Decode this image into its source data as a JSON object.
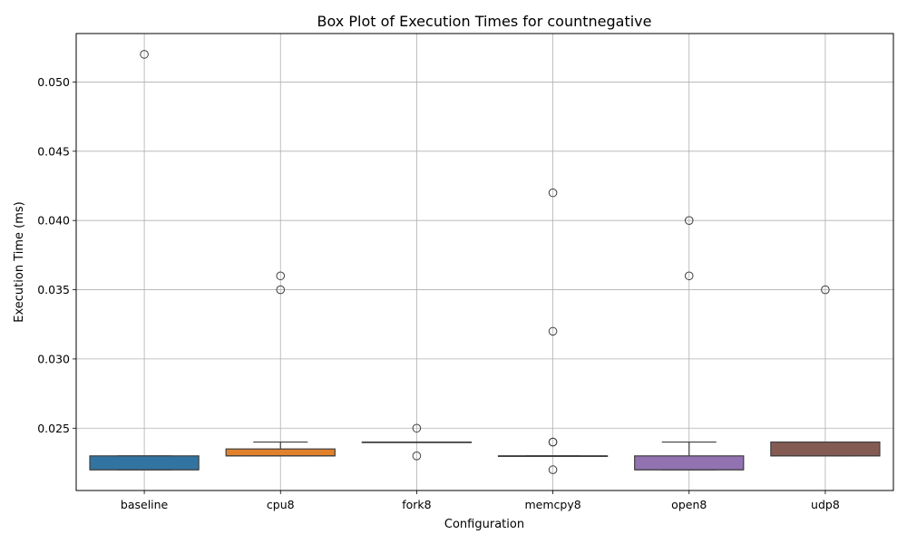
{
  "chart_data": {
    "type": "box",
    "title": "Box Plot of Execution Times for countnegative",
    "xlabel": "Configuration",
    "ylabel": "Execution Time (ms)",
    "ylim": [
      0.0205,
      0.0535
    ],
    "yticks": [
      "0.025",
      "0.030",
      "0.035",
      "0.040",
      "0.045",
      "0.050"
    ],
    "grid": true,
    "categories": [
      "baseline",
      "cpu8",
      "fork8",
      "memcpy8",
      "open8",
      "udp8"
    ],
    "colors": [
      "#3274a1",
      "#e1812c",
      "#3a923a",
      "#c03d3e",
      "#9372b2",
      "#845b53"
    ],
    "boxes": [
      {
        "name": "baseline",
        "whisker_low": 0.022,
        "q1": 0.022,
        "median": 0.022,
        "q3": 0.023,
        "whisker_high": 0.023,
        "outliers": [
          0.052
        ]
      },
      {
        "name": "cpu8",
        "whisker_low": 0.023,
        "q1": 0.023,
        "median": 0.023,
        "q3": 0.0235,
        "whisker_high": 0.024,
        "outliers": [
          0.036,
          0.035
        ]
      },
      {
        "name": "fork8",
        "whisker_low": 0.024,
        "q1": 0.024,
        "median": 0.024,
        "q3": 0.024,
        "whisker_high": 0.024,
        "outliers": [
          0.025,
          0.023
        ]
      },
      {
        "name": "memcpy8",
        "whisker_low": 0.023,
        "q1": 0.023,
        "median": 0.023,
        "q3": 0.023,
        "whisker_high": 0.023,
        "outliers": [
          0.042,
          0.032,
          0.024,
          0.024,
          0.022
        ]
      },
      {
        "name": "open8",
        "whisker_low": 0.022,
        "q1": 0.022,
        "median": 0.022,
        "q3": 0.023,
        "whisker_high": 0.024,
        "outliers": [
          0.04,
          0.036
        ]
      },
      {
        "name": "udp8",
        "whisker_low": 0.023,
        "q1": 0.023,
        "median": 0.023,
        "q3": 0.024,
        "whisker_high": 0.024,
        "outliers": [
          0.035
        ]
      }
    ]
  }
}
